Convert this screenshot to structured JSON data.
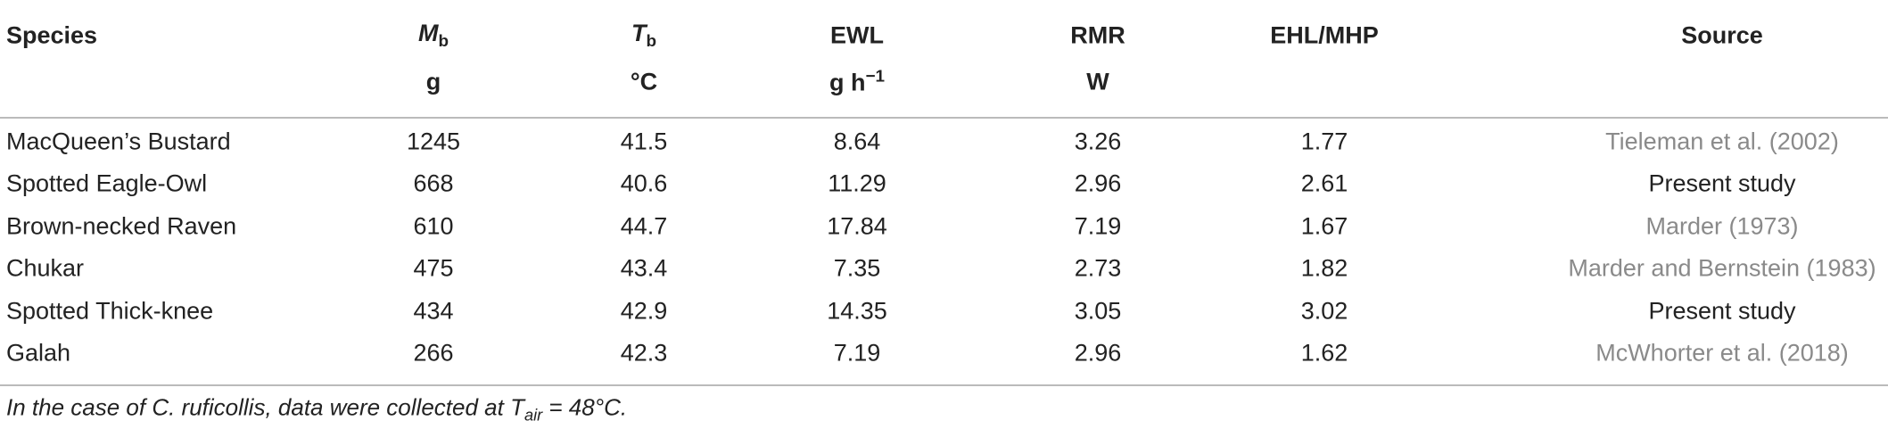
{
  "table": {
    "header": [
      {
        "label": "Species"
      },
      {
        "symbol": "M",
        "sub": "b",
        "unit": "g"
      },
      {
        "symbol": "T",
        "sub": "b",
        "unit": "°C"
      },
      {
        "label": "EWL",
        "unit": "g h",
        "unit_sup": "−1"
      },
      {
        "label": "RMR",
        "unit": "W"
      },
      {
        "label": "EHL/MHP"
      },
      {
        "label": "Source"
      }
    ],
    "rows": [
      [
        "MacQueen’s Bustard",
        "1245",
        "41.5",
        "8.64",
        "3.26",
        "1.77",
        "Tieleman et al. (2002)"
      ],
      [
        "Spotted Eagle-Owl",
        "668",
        "40.6",
        "11.29",
        "2.96",
        "2.61",
        "Present study"
      ],
      [
        "Brown-necked Raven",
        "610",
        "44.7",
        "17.84",
        "7.19",
        "1.67",
        "Marder (1973)"
      ],
      [
        "Chukar",
        "475",
        "43.4",
        "7.35",
        "2.73",
        "1.82",
        "Marder and Bernstein (1983)"
      ],
      [
        "Spotted Thick-knee",
        "434",
        "42.9",
        "14.35",
        "3.05",
        "3.02",
        "Present study"
      ],
      [
        "Galah",
        "266",
        "42.3",
        "7.19",
        "2.96",
        "1.62",
        "McWhorter et al. (2018)"
      ]
    ],
    "source_links": [
      true,
      false,
      true,
      true,
      false,
      true
    ]
  },
  "footnote": {
    "before": "In the case of C. ruficollis, data were collected at ",
    "symbol": "T",
    "sub": "air",
    "after": " = 48°C."
  }
}
